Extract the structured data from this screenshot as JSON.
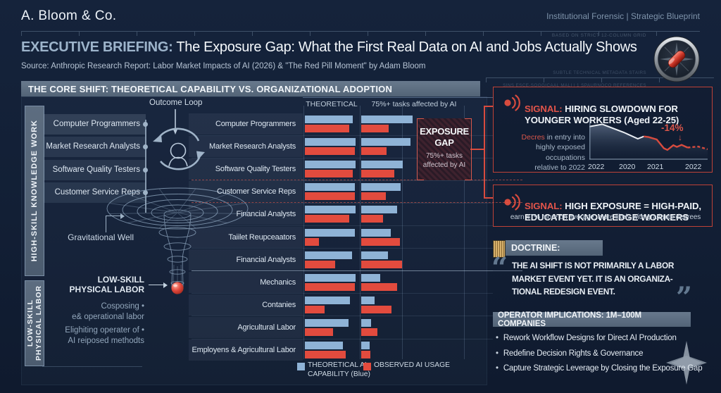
{
  "page": {
    "bg": "#131f34",
    "accent_red": "#d94a3d",
    "bar_blue": "#8fb3d6",
    "bar_red": "#e24b3e",
    "header_bar_gray": "#5c6e80"
  },
  "header": {
    "brand": "A. Bloom & Co.",
    "tagline": "Institutional Forensic | Strategic Blueprint",
    "meta_grid": "BASED ON STRICT 12-COLUMN GRID",
    "title_label": "EXECUTIVE BRIEFING:",
    "title_rest": " The Exposure Gap: What the First Real Data on AI and Jobs Actually Shows",
    "source": "Source: Anthropic Research Report: Labor Market Impacts of AI (2026) & \"The Red Pill Moment\" by Adam Bloom",
    "meta_sub_1": "SUBTLE TECHNICAL METADATA STAIRS",
    "meta_sub_2": "SINS ESCE-SOGGICAAL MALI | 1 SPAURNOCO REFERENCES"
  },
  "core_shift": {
    "header": "THE CORE SHIFT: THEORETICAL CAPABILITY VS. ORGANIZATIONAL ADOPTION",
    "outcome_loop": "Outcome Loop",
    "high_skill_label": "HIGH-SKILL KNOWLEDGE WORK",
    "low_skill_label": "LOW-SKILL\nPHYSICAL LABOR",
    "left_jobs": [
      "Computer Programmers",
      "Market Research Analysts",
      "Software Quality Testers",
      "Customer Service Reps"
    ],
    "gravity_well_label": "Gravitational Well",
    "low_skill_callout": "LOW-SKILL\nPHYSICAL LABOR",
    "low_skill_notes": [
      "Cosposing •\ne& operational labor",
      "Elighiting operater of •\nAI reiposed methodts"
    ]
  },
  "exposure_gap": {
    "title": "EXPOSURE\nGAP",
    "sub": "75%+ tasks\naffected by AI"
  },
  "signals": [
    {
      "prefix": "SIGNAL:",
      "title": " HIRING SLOWDOWN FOR\nYOUNGER WORKERS (Aged 22-25)",
      "note_red": "Decres",
      "note_rest": " in entry into\nhighly exposed\noccupations\nrelative to 2022",
      "delta": "-14%",
      "arrow": "↓"
    },
    {
      "prefix": "SIGNAL:",
      "title": " HIGH EXPOSURE = HIGH-PAID,\nEDUCATED KNOWLEDGE WORKERS",
      "sub": "earn 47% more on average, more likely with graduate degrees"
    }
  ],
  "doctrine": {
    "header": "DOCTRINE:",
    "open_quote": "“",
    "close_quote": "”",
    "quote": "THE AI SHIFT IS NOT PRIMARILY A LABOR\nMARKET EVENT YET. IT IS AN ORGANIZA-\nTIONAL REDESIGN EVENT."
  },
  "operator": {
    "header": "OPERATOR IMPLICATIONS: 1M–100M COMPANIES",
    "bullets": [
      "Rework Workflow Designs for Direct AI Production",
      "Redefine Decision Rights & Governance",
      "Capture Strategic Leverage by Closing the Exposure Gap"
    ]
  },
  "chart_data": [
    {
      "type": "bar",
      "title": "THE CORE SHIFT: THEORETICAL CAPABILITY VS. ORGANIZATIONAL ADOPTION",
      "columns": [
        "THEORETICAL",
        "75%+ tasks affected by AI"
      ],
      "legend": [
        "THEORETICAL AI\nCAPABILITY (Blue)",
        "OBSERVED AI USAGE"
      ],
      "categories": [
        "Computer Programmers",
        "Market Research Analysts",
        "Software Quality Testers",
        "Customer Service Reps",
        "Financial Analysts",
        "Taiilet Reupceaators",
        "Financial Analysts",
        "Mechanics",
        "Contanies",
        "Agricultural Labor",
        "Employens & Agricultural Labor"
      ],
      "units": "relative scale 0-100",
      "group_break_after_index": 6,
      "series": [
        {
          "name": "Theoretical AI Capability",
          "column": "THEORETICAL",
          "color": "#8fb3d6",
          "values": [
            86,
            91,
            91,
            90,
            91,
            90,
            85,
            91,
            81,
            78,
            68
          ]
        },
        {
          "name": "Observed AI Usage",
          "column": "THEORETICAL",
          "color": "#e24b3e",
          "values": [
            80,
            90,
            86,
            90,
            80,
            25,
            55,
            90,
            36,
            50,
            74
          ]
        },
        {
          "name": "Theoretical AI Capability",
          "column": "75%+ tasks affected by AI",
          "color": "#8fb3d6",
          "values": [
            93,
            89,
            75,
            71,
            64,
            53,
            48,
            34,
            24,
            18,
            15
          ]
        },
        {
          "name": "Observed AI Usage",
          "column": "75%+ tasks affected by AI",
          "color": "#e24b3e",
          "values": [
            49,
            46,
            59,
            44,
            39,
            70,
            74,
            65,
            55,
            29,
            16
          ]
        }
      ]
    },
    {
      "type": "line",
      "title": "Hiring slowdown for younger workers (Aged 22-25)",
      "annotation": "-14%",
      "xticks": [
        "2022",
        "2020",
        "2021",
        "2022"
      ],
      "points_pct": [
        [
          0,
          12
        ],
        [
          11,
          5
        ],
        [
          20,
          17
        ],
        [
          29,
          29
        ],
        [
          41,
          48
        ],
        [
          46,
          41
        ],
        [
          50,
          43
        ],
        [
          57,
          50
        ],
        [
          63,
          76
        ],
        [
          66,
          81
        ],
        [
          71,
          67
        ],
        [
          74,
          72
        ],
        [
          78,
          66
        ],
        [
          83,
          74
        ],
        [
          92,
          71
        ],
        [
          100,
          79
        ]
      ],
      "red_from_index": 5,
      "dashed_tail_from_index": 13
    }
  ]
}
